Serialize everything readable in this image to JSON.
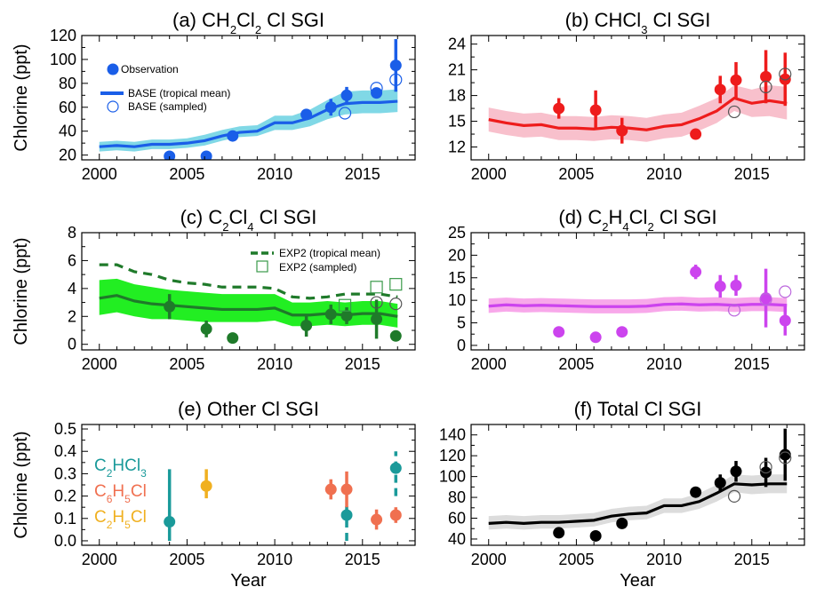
{
  "chart_data": [
    {
      "id": "a",
      "type": "line",
      "title": {
        "pre": "(a) CH",
        "sub1": "2",
        "mid": "Cl",
        "sub2": "2",
        "post": " Cl SGI"
      },
      "ylabel": "Chlorine (ppt)",
      "xlabel": "",
      "xlim": [
        1999,
        2018
      ],
      "ylim": [
        16,
        120
      ],
      "xticks": [
        2000,
        2005,
        2010,
        2015
      ],
      "yticks": [
        20,
        40,
        60,
        80,
        100,
        120
      ],
      "colors": {
        "main": "#1a5ee8",
        "band": "#80d8e6",
        "sampled": "#1a5ee8"
      },
      "legend": {
        "observation": "Observation",
        "base_line": "BASE (tropical mean)",
        "base_sampled": "BASE (sampled)"
      },
      "model_line": {
        "x": [
          2000,
          2001,
          2002,
          2003,
          2004,
          2005,
          2006,
          2007,
          2008,
          2009,
          2010,
          2011,
          2012,
          2013,
          2014,
          2015,
          2016,
          2017
        ],
        "y": [
          27,
          28,
          27,
          29,
          29,
          30,
          32,
          36,
          39,
          40,
          47,
          47,
          51,
          58,
          63,
          64,
          64,
          65
        ],
        "lo": [
          23,
          24,
          23,
          25,
          25,
          26,
          28,
          32,
          35,
          36,
          41,
          41,
          44,
          50,
          54,
          55,
          55,
          56
        ],
        "hi": [
          31,
          32,
          31,
          33,
          33,
          34,
          37,
          41,
          44,
          45,
          53,
          53,
          58,
          66,
          73,
          74,
          74,
          75
        ]
      },
      "observations": [
        {
          "x": 2004.0,
          "y": 19,
          "err": 1
        },
        {
          "x": 2006.1,
          "y": 19,
          "err": 1
        },
        {
          "x": 2007.6,
          "y": 36,
          "err": 2
        },
        {
          "x": 2011.8,
          "y": 54,
          "err": 3
        },
        {
          "x": 2013.2,
          "y": 60,
          "err": 7
        },
        {
          "x": 2014.1,
          "y": 70,
          "err": 7
        },
        {
          "x": 2015.8,
          "y": 72,
          "err": 3
        },
        {
          "x": 2016.9,
          "y": 95,
          "err": 22
        }
      ],
      "sampled": [
        {
          "x": 2014.0,
          "y": 55
        },
        {
          "x": 2015.8,
          "y": 76
        },
        {
          "x": 2016.9,
          "y": 83
        }
      ]
    },
    {
      "id": "b",
      "type": "line",
      "title": {
        "pre": "(b) CHCl",
        "sub1": "3",
        "mid": "",
        "sub2": "",
        "post": " Cl SGI"
      },
      "ylabel": "",
      "xlabel": "",
      "xlim": [
        1999,
        2018
      ],
      "ylim": [
        10.5,
        25
      ],
      "xticks": [
        2000,
        2005,
        2010,
        2015
      ],
      "yticks": [
        12,
        15,
        18,
        21,
        24
      ],
      "colors": {
        "main": "#ee1c1c",
        "band": "#f8c0cc",
        "sampled": "#555555"
      },
      "model_line": {
        "x": [
          2000,
          2001,
          2002,
          2003,
          2004,
          2005,
          2006,
          2007,
          2008,
          2009,
          2010,
          2011,
          2012,
          2013,
          2014,
          2015,
          2016,
          2017
        ],
        "y": [
          15.2,
          14.8,
          14.5,
          14.6,
          14.2,
          14.2,
          14.1,
          14.3,
          14.2,
          14.0,
          14.4,
          14.6,
          15.3,
          16.2,
          17.7,
          17.1,
          17.4,
          17.1
        ],
        "lo": [
          13.8,
          13.4,
          13.1,
          13.2,
          12.8,
          12.8,
          12.7,
          12.9,
          12.8,
          12.6,
          13.0,
          13.2,
          13.9,
          14.8,
          16.2,
          15.5,
          15.6,
          15.2
        ],
        "hi": [
          16.6,
          16.2,
          15.9,
          16.0,
          15.6,
          15.6,
          15.5,
          15.7,
          15.6,
          15.4,
          15.8,
          16.0,
          16.8,
          17.7,
          19.2,
          18.7,
          19.2,
          19.0
        ]
      },
      "observations": [
        {
          "x": 2004.0,
          "y": 16.5,
          "err": 1.2
        },
        {
          "x": 2006.1,
          "y": 16.3,
          "err": 2.3
        },
        {
          "x": 2007.6,
          "y": 13.9,
          "err": 1.5
        },
        {
          "x": 2011.8,
          "y": 13.5,
          "err": 0.6
        },
        {
          "x": 2013.2,
          "y": 18.7,
          "err": 1.6
        },
        {
          "x": 2014.1,
          "y": 19.8,
          "err": 2.1
        },
        {
          "x": 2015.8,
          "y": 20.2,
          "err": 3.1
        },
        {
          "x": 2016.9,
          "y": 19.9,
          "err": 3.1
        }
      ],
      "sampled": [
        {
          "x": 2014.0,
          "y": 16.1
        },
        {
          "x": 2015.8,
          "y": 19.0
        },
        {
          "x": 2016.9,
          "y": 20.5
        }
      ]
    },
    {
      "id": "c",
      "type": "line",
      "title": {
        "pre": "(c) C",
        "sub1": "2",
        "mid": "Cl",
        "sub2": "4",
        "post": " Cl SGI"
      },
      "ylabel": "Chlorine (ppt)",
      "xlabel": "",
      "xlim": [
        1999,
        2018
      ],
      "ylim": [
        -0.4,
        8
      ],
      "xticks": [
        2000,
        2005,
        2010,
        2015
      ],
      "yticks": [
        0,
        2,
        4,
        6,
        8
      ],
      "colors": {
        "main": "#1f7a2a",
        "band": "#22ee22",
        "sampled": "#3a9a4a"
      },
      "legend": {
        "exp2_line": "EXP2 (tropical mean)",
        "exp2_sampled": "EXP2 (sampled)"
      },
      "model_line": {
        "x": [
          2000,
          2001,
          2002,
          2003,
          2004,
          2005,
          2006,
          2007,
          2008,
          2009,
          2010,
          2011,
          2012,
          2013,
          2014,
          2015,
          2016,
          2017
        ],
        "y": [
          3.3,
          3.5,
          3.1,
          2.9,
          2.8,
          2.7,
          2.6,
          2.5,
          2.5,
          2.5,
          2.6,
          2.1,
          2.1,
          2.2,
          2.1,
          2.2,
          2.2,
          2.0
        ],
        "lo": [
          2.1,
          2.3,
          2.0,
          1.8,
          1.8,
          1.7,
          1.6,
          1.6,
          1.6,
          1.6,
          1.7,
          1.3,
          1.3,
          1.4,
          1.3,
          1.4,
          1.4,
          1.2
        ],
        "hi": [
          4.6,
          4.7,
          4.3,
          4.1,
          3.9,
          3.8,
          3.7,
          3.6,
          3.6,
          3.6,
          3.6,
          3.0,
          3.0,
          3.1,
          3.0,
          3.1,
          3.1,
          2.9
        ]
      },
      "exp2_line": {
        "x": [
          2000,
          2001,
          2002,
          2003,
          2004,
          2005,
          2006,
          2007,
          2008,
          2009,
          2010,
          2011,
          2012,
          2013,
          2014,
          2015,
          2016,
          2017
        ],
        "y": [
          5.7,
          5.7,
          5.2,
          5.0,
          4.6,
          4.4,
          4.3,
          4.1,
          4.1,
          4.1,
          4.0,
          3.4,
          3.3,
          3.4,
          3.6,
          3.6,
          3.6,
          3.4
        ]
      },
      "observations": [
        {
          "x": 2004.0,
          "y": 2.7,
          "err": 0.9
        },
        {
          "x": 2006.1,
          "y": 1.1,
          "err": 0.6
        },
        {
          "x": 2007.6,
          "y": 0.45,
          "err": 0
        },
        {
          "x": 2011.8,
          "y": 1.35,
          "err": 0.8
        },
        {
          "x": 2013.2,
          "y": 2.15,
          "err": 0.7
        },
        {
          "x": 2014.1,
          "y": 2.05,
          "err": 0.6
        },
        {
          "x": 2015.8,
          "y": 1.8,
          "err": 1.4
        },
        {
          "x": 2016.9,
          "y": 0.6,
          "err": 0.2
        }
      ],
      "sampled": [
        {
          "x": 2014.0,
          "y": 2.8
        },
        {
          "x": 2015.8,
          "y": 4.1
        },
        {
          "x": 2016.9,
          "y": 4.3
        }
      ],
      "sampled_open_circles": [
        {
          "x": 2015.8,
          "y": 3.0
        },
        {
          "x": 2016.9,
          "y": 2.9
        }
      ]
    },
    {
      "id": "d",
      "type": "line",
      "title": {
        "pre": "(d) C",
        "sub1": "2",
        "mid": "H",
        "sub2": "4",
        "post": "Cl",
        "sub3": "2",
        "post2": " Cl SGI"
      },
      "ylabel": "",
      "xlabel": "",
      "xlim": [
        1999,
        2018
      ],
      "ylim": [
        -1,
        25
      ],
      "xticks": [
        2000,
        2005,
        2010,
        2015
      ],
      "yticks": [
        0,
        5,
        10,
        15,
        20,
        25
      ],
      "colors": {
        "main": "#cc44ee",
        "band": "#f8a8ea",
        "sampled": "#bb66dd"
      },
      "model_line": {
        "x": [
          2000,
          2001,
          2002,
          2003,
          2004,
          2005,
          2006,
          2007,
          2008,
          2009,
          2010,
          2011,
          2012,
          2013,
          2014,
          2015,
          2016,
          2017
        ],
        "y": [
          8.7,
          9.0,
          8.8,
          8.9,
          8.8,
          8.7,
          8.6,
          8.6,
          8.6,
          8.7,
          9.1,
          9.2,
          9.0,
          9.1,
          8.9,
          9.1,
          9.1,
          8.9
        ],
        "lo": [
          7.2,
          7.5,
          7.3,
          7.4,
          7.3,
          7.2,
          7.1,
          7.1,
          7.1,
          7.2,
          7.6,
          7.7,
          7.5,
          7.6,
          7.4,
          7.6,
          7.6,
          7.4
        ],
        "hi": [
          10.4,
          10.6,
          10.4,
          10.5,
          10.4,
          10.3,
          10.2,
          10.2,
          10.2,
          10.3,
          10.7,
          10.8,
          10.6,
          10.7,
          10.5,
          10.7,
          10.7,
          10.5
        ]
      },
      "observations": [
        {
          "x": 2004.0,
          "y": 3.0,
          "err": 0
        },
        {
          "x": 2006.1,
          "y": 1.8,
          "err": 0.6
        },
        {
          "x": 2007.6,
          "y": 3.0,
          "err": 1.2
        },
        {
          "x": 2011.8,
          "y": 16.3,
          "err": 1.6
        },
        {
          "x": 2013.2,
          "y": 13.1,
          "err": 2.5
        },
        {
          "x": 2014.1,
          "y": 13.3,
          "err": 2.3
        },
        {
          "x": 2015.8,
          "y": 10.5,
          "err": 6.5
        },
        {
          "x": 2016.9,
          "y": 5.5,
          "err": 3.3
        }
      ],
      "sampled": [
        {
          "x": 2014.0,
          "y": 7.8
        },
        {
          "x": 2015.8,
          "y": 10.2
        },
        {
          "x": 2016.9,
          "y": 11.9
        }
      ]
    },
    {
      "id": "e",
      "type": "scatter",
      "title": {
        "pre": "(e) Other Cl SGI",
        "sub1": "",
        "mid": "",
        "sub2": "",
        "post": ""
      },
      "ylabel": "Chlorine (ppt)",
      "xlabel": "Year",
      "xlim": [
        1999,
        2018
      ],
      "ylim": [
        -0.02,
        0.52
      ],
      "xticks": [
        2000,
        2005,
        2010,
        2015
      ],
      "yticks": [
        0.0,
        0.1,
        0.2,
        0.3,
        0.4,
        0.5
      ],
      "ytick_labels": [
        "0.0",
        "0.1",
        "0.2",
        "0.3",
        "0.4",
        "0.5"
      ],
      "species": [
        {
          "label_pre": "C",
          "sub1": "2",
          "mid": "HCl",
          "sub2": "3",
          "color": "#1a9a9a"
        },
        {
          "label_pre": "C",
          "sub1": "6",
          "mid": "H",
          "sub2": "5",
          "post": "Cl",
          "color": "#f07050"
        },
        {
          "label_pre": "C",
          "sub1": "2",
          "mid": "H",
          "sub2": "5",
          "post": "Cl",
          "color": "#f0b020"
        }
      ],
      "series": [
        {
          "name_ref": 0,
          "color": "#1a9a9a",
          "dashed_err": false,
          "points": [
            {
              "x": 2004.0,
              "y": 0.085,
              "lo": 0.0,
              "hi": 0.32
            }
          ]
        },
        {
          "name_ref": 0,
          "color": "#1a9a9a",
          "dashed_err": true,
          "points": [
            {
              "x": 2014.1,
              "y": 0.115,
              "lo": 0.0,
              "hi": 0.17
            },
            {
              "x": 2016.9,
              "y": 0.325,
              "lo": 0.2,
              "hi": 0.4
            }
          ]
        },
        {
          "name_ref": 1,
          "color": "#f07050",
          "dashed_err": false,
          "points": [
            {
              "x": 2013.2,
              "y": 0.23,
              "lo": 0.185,
              "hi": 0.275
            },
            {
              "x": 2014.1,
              "y": 0.23,
              "lo": 0.15,
              "hi": 0.31
            },
            {
              "x": 2015.8,
              "y": 0.095,
              "lo": 0.05,
              "hi": 0.14
            },
            {
              "x": 2016.9,
              "y": 0.115,
              "lo": 0.08,
              "hi": 0.15
            }
          ]
        },
        {
          "name_ref": 2,
          "color": "#f0b020",
          "dashed_err": false,
          "points": [
            {
              "x": 2006.1,
              "y": 0.245,
              "lo": 0.19,
              "hi": 0.32
            }
          ]
        }
      ]
    },
    {
      "id": "f",
      "type": "line",
      "title": {
        "pre": "(f) Total Cl SGI",
        "sub1": "",
        "mid": "",
        "sub2": "",
        "post": ""
      },
      "ylabel": "",
      "xlabel": "Year",
      "xlim": [
        1999,
        2018
      ],
      "ylim": [
        34,
        150
      ],
      "xticks": [
        2000,
        2005,
        2010,
        2015
      ],
      "yticks": [
        40,
        60,
        80,
        100,
        120,
        140
      ],
      "colors": {
        "main": "#000000",
        "band": "#dcdcdc",
        "sampled": "#555555"
      },
      "model_line": {
        "x": [
          2000,
          2001,
          2002,
          2003,
          2004,
          2005,
          2006,
          2007,
          2008,
          2009,
          2010,
          2011,
          2012,
          2013,
          2014,
          2015,
          2016,
          2017
        ],
        "y": [
          55,
          56,
          55,
          56,
          56,
          57,
          58,
          62,
          64,
          65,
          72,
          72,
          76,
          84,
          93,
          92,
          93,
          93
        ],
        "lo": [
          49,
          50,
          49,
          50,
          50,
          51,
          52,
          56,
          58,
          59,
          65,
          65,
          69,
          76,
          85,
          83,
          84,
          84
        ],
        "hi": [
          62,
          63,
          62,
          63,
          63,
          64,
          65,
          69,
          71,
          72,
          79,
          79,
          84,
          92,
          102,
          101,
          102,
          102
        ]
      },
      "observations": [
        {
          "x": 2004.0,
          "y": 46,
          "err": 2
        },
        {
          "x": 2006.1,
          "y": 43,
          "err": 3
        },
        {
          "x": 2007.6,
          "y": 55,
          "err": 4
        },
        {
          "x": 2011.8,
          "y": 85,
          "err": 3
        },
        {
          "x": 2013.2,
          "y": 94,
          "err": 8
        },
        {
          "x": 2014.1,
          "y": 105,
          "err": 10
        },
        {
          "x": 2015.8,
          "y": 104,
          "err": 14
        },
        {
          "x": 2016.9,
          "y": 121,
          "err": 25
        }
      ],
      "sampled": [
        {
          "x": 2014.0,
          "y": 81
        },
        {
          "x": 2015.8,
          "y": 109
        },
        {
          "x": 2016.9,
          "y": 118
        }
      ]
    }
  ]
}
